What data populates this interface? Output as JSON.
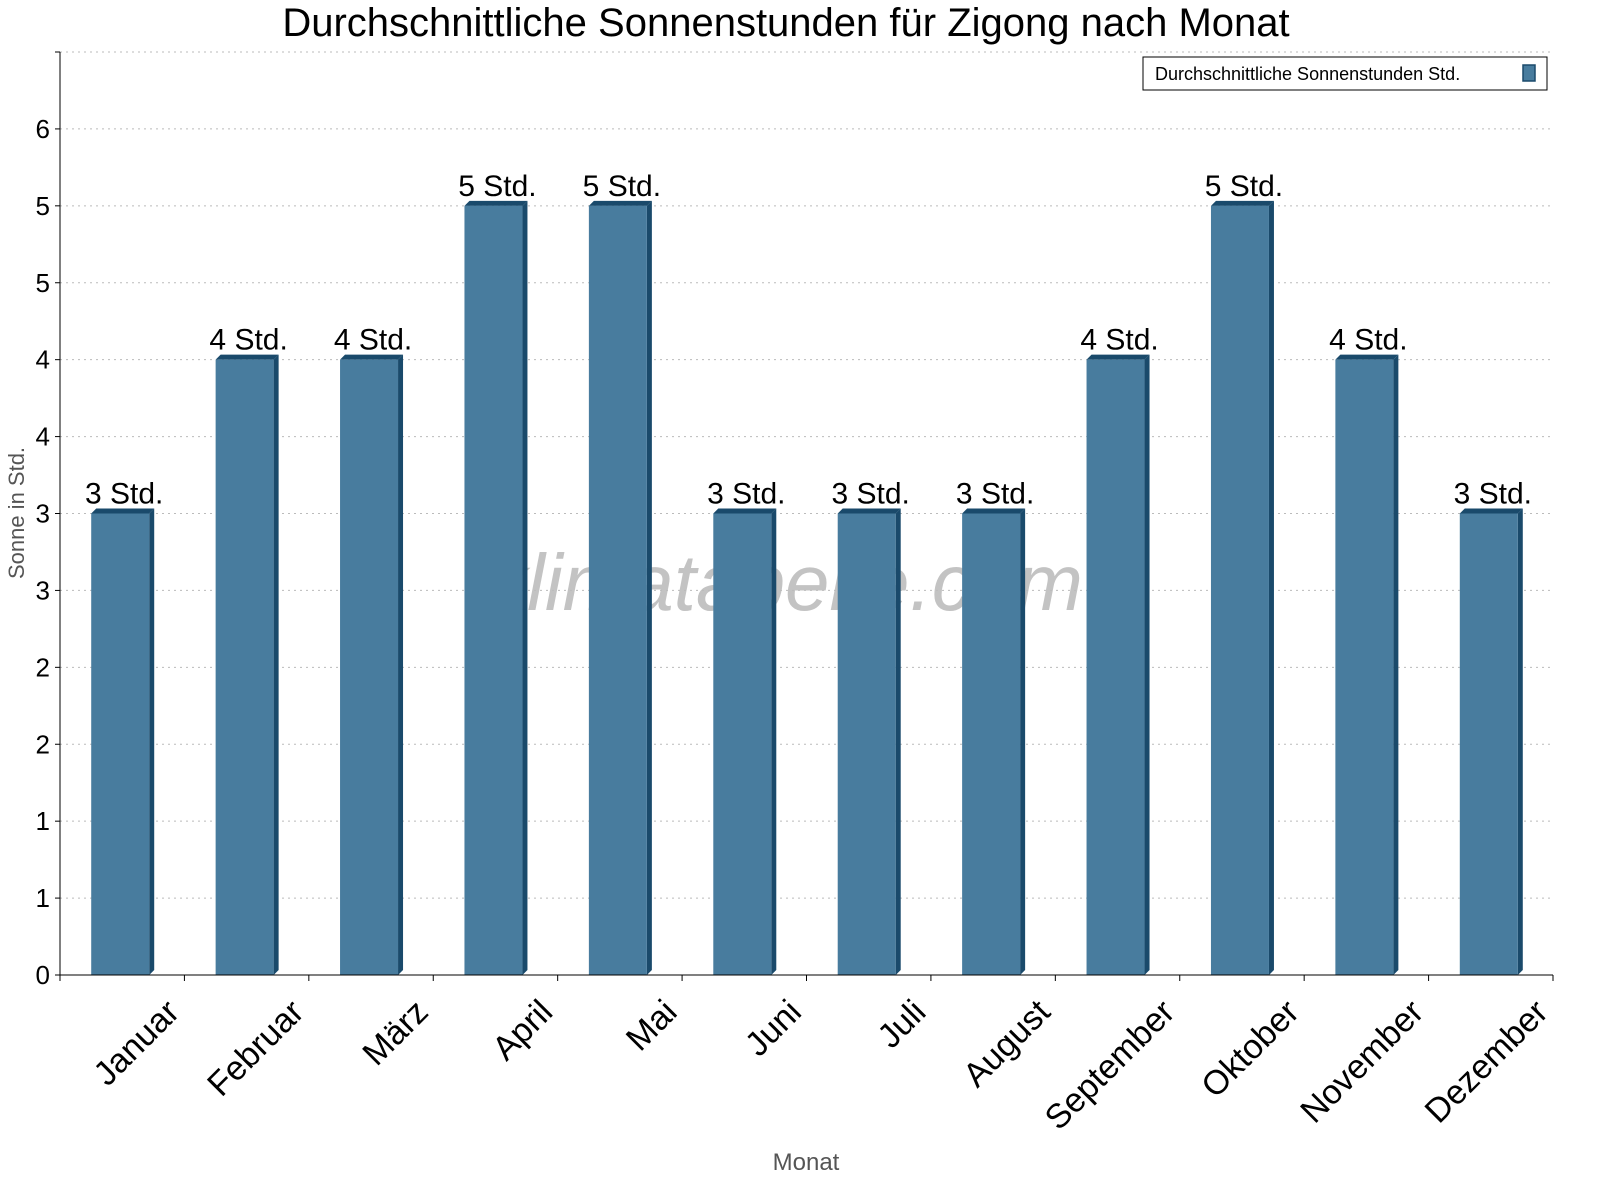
{
  "chart_data": {
    "type": "bar",
    "title": "Durchschnittliche Sonnenstunden für Zigong nach Monat",
    "xlabel": "Monat",
    "ylabel": "Sonne in Std.",
    "watermark": "klimatabelle.com",
    "categories": [
      "Januar",
      "Februar",
      "März",
      "April",
      "Mai",
      "Juni",
      "Juli",
      "August",
      "September",
      "Oktober",
      "November",
      "Dezember"
    ],
    "series": [
      {
        "name": "Durchschnittliche Sonnenstunden Std.",
        "values": [
          3,
          4,
          4,
          5,
          5,
          3,
          3,
          3,
          4,
          5,
          4,
          3
        ],
        "color": "#487c9e",
        "side_color": "#1a4a6b"
      }
    ],
    "data_labels": [
      "3 Std.",
      "4 Std.",
      "4 Std.",
      "5 Std.",
      "5 Std.",
      "3 Std.",
      "3 Std.",
      "3 Std.",
      "4 Std.",
      "5 Std.",
      "4 Std.",
      "3 Std."
    ],
    "ylim": [
      0,
      5.5
    ],
    "y_ticks": [
      0,
      0.5,
      1,
      1.5,
      2,
      2.5,
      3,
      3.5,
      4,
      4.5,
      5,
      5.5
    ],
    "y_tick_labels": [
      "0",
      "1",
      "1",
      "2",
      "2",
      "3",
      "3",
      "4",
      "4",
      "5",
      "5",
      "6"
    ],
    "grid": true,
    "legend_position": "top-right"
  }
}
